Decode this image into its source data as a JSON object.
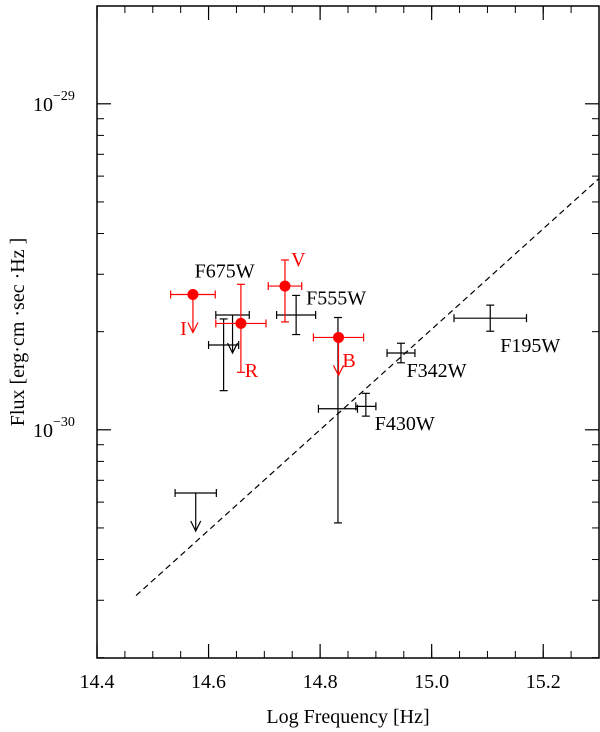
{
  "chart_data": {
    "type": "scatter",
    "title": "",
    "xlabel": "Log Frequency [Hz]",
    "ylabel": "Flux [erg·cm  ·sec  ·Hz  ]",
    "xlim": [
      14.4,
      15.3
    ],
    "ylim_log10": [
      -30.7,
      -28.7
    ],
    "y_scale": "log",
    "x_ticks": [
      "14.4",
      "14.6",
      "14.8",
      "15.0",
      "15.2"
    ],
    "y_ticks": [
      {
        "label_base": "10",
        "label_exp": "−29",
        "value": 1e-29
      },
      {
        "label_base": "10",
        "label_exp": "−30",
        "value": 1e-30
      }
    ],
    "colors": {
      "black": "#000000",
      "red": "#ff0000"
    },
    "series": [
      {
        "color": "#000000",
        "points": [
          {
            "x": 14.627,
            "y": 1.82e-30,
            "xerr": [
              0.027,
              0.027
            ],
            "yerr_log": [
              0.14,
              0.08
            ]
          },
          {
            "x": 14.643,
            "y": 2.25e-30,
            "xerr": [
              0.03,
              0.03
            ],
            "yerr_log": [
              0.0,
              0.0
            ],
            "upper_limit": true
          },
          {
            "x": 14.757,
            "y": 2.25e-30,
            "xerr": [
              0.035,
              0.035
            ],
            "yerr_log": [
              0.06,
              0.06
            ]
          },
          {
            "x": 14.832,
            "y": 1.16e-30,
            "xerr": [
              0.035,
              0.035
            ],
            "yerr_log": [
              0.35,
              0.28
            ]
          },
          {
            "x": 14.882,
            "y": 1.18e-30,
            "xerr": [
              0.018,
              0.018
            ],
            "yerr_log": [
              0.03,
              0.04
            ]
          },
          {
            "x": 14.945,
            "y": 1.72e-30,
            "xerr": [
              0.025,
              0.025
            ],
            "yerr_log": [
              0.03,
              0.03
            ]
          },
          {
            "x": 15.105,
            "y": 2.2e-30,
            "xerr": [
              0.065,
              0.065
            ],
            "yerr_log": [
              0.04,
              0.04
            ]
          },
          {
            "x": 14.577,
            "y": 6.4e-31,
            "xerr": [
              0.037,
              0.037
            ],
            "yerr_log": [
              0.0,
              0.0
            ],
            "upper_limit": true
          }
        ]
      },
      {
        "color": "#ff0000",
        "points": [
          {
            "x": 14.572,
            "y": 2.6e-30,
            "xerr": [
              0.04,
              0.04
            ],
            "yerr_log": [
              0.0,
              0.0
            ],
            "upper_limit": true
          },
          {
            "x": 14.658,
            "y": 2.12e-30,
            "xerr": [
              0.045,
              0.045
            ],
            "yerr_log": [
              0.15,
              0.12
            ]
          },
          {
            "x": 14.737,
            "y": 2.76e-30,
            "xerr": [
              0.03,
              0.03
            ],
            "yerr_log": [
              0.11,
              0.08
            ]
          },
          {
            "x": 14.833,
            "y": 1.92e-30,
            "xerr": [
              0.045,
              0.045
            ],
            "yerr_log": [
              0.0,
              0.0
            ],
            "upper_limit": true
          }
        ]
      }
    ],
    "point_labels": [
      {
        "text": "F675W",
        "color": "#000000",
        "x": 14.575,
        "y": 2.93e-30
      },
      {
        "text": "F555W",
        "color": "#000000",
        "x": 14.775,
        "y": 2.42e-30
      },
      {
        "text": "F195W",
        "color": "#000000",
        "x": 15.123,
        "y": 1.73e-30
      },
      {
        "text": "F342W",
        "color": "#000000",
        "x": 14.955,
        "y": 1.45e-30
      },
      {
        "text": "F430W",
        "color": "#000000",
        "x": 14.898,
        "y": 1e-30
      },
      {
        "text": "V",
        "color": "#ff0000",
        "x": 14.748,
        "y": 3.18e-30
      },
      {
        "text": "I",
        "color": "#ff0000",
        "x": 14.549,
        "y": 1.95e-30
      },
      {
        "text": "R",
        "color": "#ff0000",
        "x": 14.665,
        "y": 1.45e-30
      },
      {
        "text": "B",
        "color": "#ff0000",
        "x": 14.84,
        "y": 1.56e-30
      }
    ],
    "dashed_line": {
      "x": [
        14.47,
        15.3
      ],
      "y": [
        3.1e-31,
        5.9e-30
      ]
    }
  }
}
